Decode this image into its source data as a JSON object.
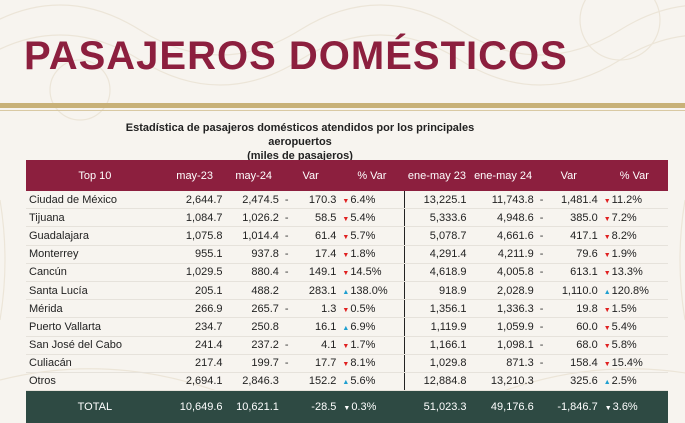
{
  "title": "PASAJEROS DOMÉSTICOS",
  "subtitle_line1": "Estadística de pasajeros domésticos atendidos por los principales aeropuertos",
  "subtitle_line2": "(miles de pasajeros)",
  "colors": {
    "header": "#8c1f3e",
    "total_row": "#2e4a43",
    "up_arrow": "#1f9fd0",
    "down_arrow": "#e02020",
    "accent_rule": "#c8b178"
  },
  "table": {
    "headers": [
      "Top 10",
      "may-23",
      "may-24",
      "Var",
      "% Var",
      "ene-may 23",
      "ene-may 24",
      "Var",
      "% Var"
    ],
    "rows": [
      {
        "name": "Ciudad de México",
        "m23": "2,644.7",
        "m24": "2,474.5",
        "d1": "-",
        "var": "170.3",
        "pdir": "down",
        "p": "6.4%",
        "e23": "13,225.1",
        "e24": "11,743.8",
        "d2": "-",
        "var2": "1,481.4",
        "p2dir": "down",
        "p2": "11.2%"
      },
      {
        "name": "Tijuana",
        "m23": "1,084.7",
        "m24": "1,026.2",
        "d1": "-",
        "var": "58.5",
        "pdir": "down",
        "p": "5.4%",
        "e23": "5,333.6",
        "e24": "4,948.6",
        "d2": "-",
        "var2": "385.0",
        "p2dir": "down",
        "p2": "7.2%"
      },
      {
        "name": "Guadalajara",
        "m23": "1,075.8",
        "m24": "1,014.4",
        "d1": "-",
        "var": "61.4",
        "pdir": "down",
        "p": "5.7%",
        "e23": "5,078.7",
        "e24": "4,661.6",
        "d2": "-",
        "var2": "417.1",
        "p2dir": "down",
        "p2": "8.2%"
      },
      {
        "name": "Monterrey",
        "m23": "955.1",
        "m24": "937.8",
        "d1": "-",
        "var": "17.4",
        "pdir": "down",
        "p": "1.8%",
        "e23": "4,291.4",
        "e24": "4,211.9",
        "d2": "-",
        "var2": "79.6",
        "p2dir": "down",
        "p2": "1.9%"
      },
      {
        "name": "Cancún",
        "m23": "1,029.5",
        "m24": "880.4",
        "d1": "-",
        "var": "149.1",
        "pdir": "down",
        "p": "14.5%",
        "e23": "4,618.9",
        "e24": "4,005.8",
        "d2": "-",
        "var2": "613.1",
        "p2dir": "down",
        "p2": "13.3%"
      },
      {
        "name": "Santa Lucía",
        "m23": "205.1",
        "m24": "488.2",
        "d1": "",
        "var": "283.1",
        "pdir": "up",
        "p": "138.0%",
        "e23": "918.9",
        "e24": "2,028.9",
        "d2": "",
        "var2": "1,110.0",
        "p2dir": "up",
        "p2": "120.8%"
      },
      {
        "name": "Mérida",
        "m23": "266.9",
        "m24": "265.7",
        "d1": "-",
        "var": "1.3",
        "pdir": "down",
        "p": "0.5%",
        "e23": "1,356.1",
        "e24": "1,336.3",
        "d2": "-",
        "var2": "19.8",
        "p2dir": "down",
        "p2": "1.5%"
      },
      {
        "name": "Puerto Vallarta",
        "m23": "234.7",
        "m24": "250.8",
        "d1": "",
        "var": "16.1",
        "pdir": "up",
        "p": "6.9%",
        "e23": "1,119.9",
        "e24": "1,059.9",
        "d2": "-",
        "var2": "60.0",
        "p2dir": "down",
        "p2": "5.4%"
      },
      {
        "name": "San José del Cabo",
        "m23": "241.4",
        "m24": "237.2",
        "d1": "-",
        "var": "4.1",
        "pdir": "down",
        "p": "1.7%",
        "e23": "1,166.1",
        "e24": "1,098.1",
        "d2": "-",
        "var2": "68.0",
        "p2dir": "down",
        "p2": "5.8%"
      },
      {
        "name": "Culiacán",
        "m23": "217.4",
        "m24": "199.7",
        "d1": "-",
        "var": "17.7",
        "pdir": "down",
        "p": "8.1%",
        "e23": "1,029.8",
        "e24": "871.3",
        "d2": "-",
        "var2": "158.4",
        "p2dir": "down",
        "p2": "15.4%"
      },
      {
        "name": "Otros",
        "m23": "2,694.1",
        "m24": "2,846.3",
        "d1": "",
        "var": "152.2",
        "pdir": "up",
        "p": "5.6%",
        "e23": "12,884.8",
        "e24": "13,210.3",
        "d2": "",
        "var2": "325.6",
        "p2dir": "up",
        "p2": "2.5%"
      }
    ],
    "total": {
      "name": "TOTAL",
      "m23": "10,649.6",
      "m24": "10,621.1",
      "var": "-28.5",
      "pdir": "down",
      "p": "0.3%",
      "e23": "51,023.3",
      "e24": "49,176.6",
      "var2": "-1,846.7",
      "p2dir": "down",
      "p2": "3.6%"
    }
  }
}
